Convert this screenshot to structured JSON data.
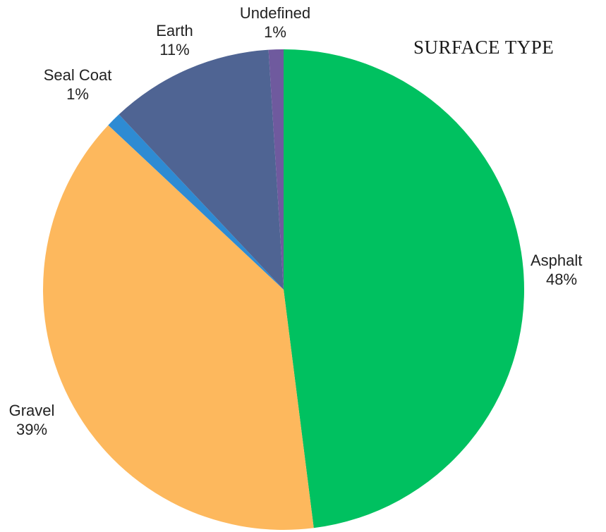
{
  "chart_data": {
    "type": "pie",
    "title": "SURFACE TYPE",
    "start_angle_deg": 0,
    "direction": "clockwise",
    "slices": [
      {
        "name": "Asphalt",
        "value": 48,
        "display": "48%",
        "color": "#00c160"
      },
      {
        "name": "Gravel",
        "value": 39,
        "display": "39%",
        "color": "#fdb85d"
      },
      {
        "name": "Seal Coat",
        "value": 1,
        "display": "1%",
        "color": "#2e8bd3"
      },
      {
        "name": "Earth",
        "value": 11,
        "display": "11%",
        "color": "#4f6493"
      },
      {
        "name": "Undefined",
        "value": 1,
        "display": "1%",
        "color": "#6f5a9e"
      }
    ]
  }
}
